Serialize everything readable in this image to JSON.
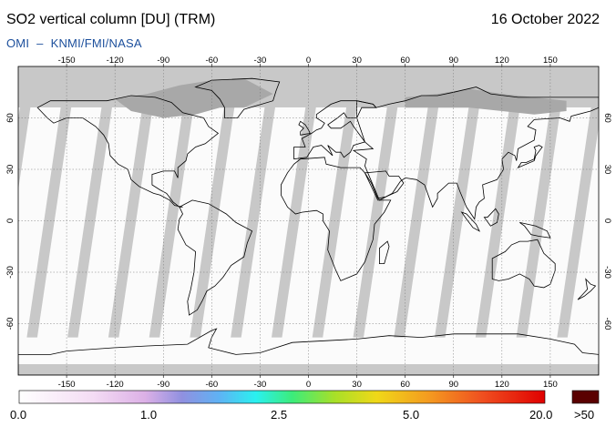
{
  "header": {
    "title": "SO2 vertical column [DU] (TRM)",
    "date": "16 October 2022",
    "instrument": "OMI",
    "separator": "–",
    "provider": "KNMI/FMI/NASA"
  },
  "map": {
    "projection": "equirectangular",
    "lon_range": [
      -180,
      180
    ],
    "lat_range": [
      -90,
      90
    ],
    "lon_ticks": [
      "-150",
      "-120",
      "-90",
      "-60",
      "-30",
      "0",
      "30",
      "60",
      "90",
      "120",
      "150"
    ],
    "lat_ticks": [
      "60",
      "30",
      "0",
      "-30",
      "-60"
    ],
    "colors": {
      "no_data": "#c8c8c8",
      "land_no_data": "#a8a8a8",
      "low_value": "#fbfbfb",
      "coastline": "#000000",
      "grid": "#777777"
    }
  },
  "colorbar": {
    "labels": [
      "0.0",
      "1.0",
      "2.5",
      "5.0",
      "20.0",
      ">50"
    ],
    "overflow_color": "#5a0000"
  }
}
